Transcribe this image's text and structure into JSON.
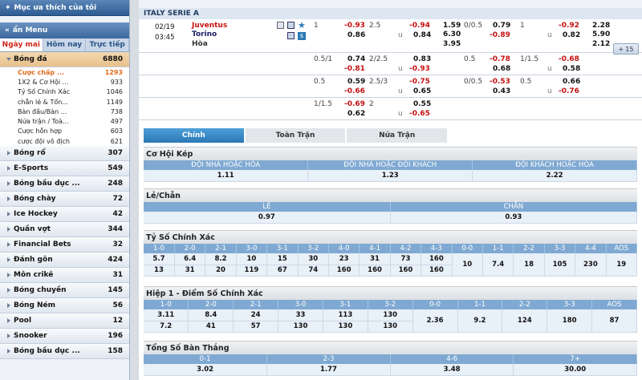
{
  "sidebar": {
    "favorites_title": "Mục ưa thích của tôi",
    "menu_title": "ẩn Menu",
    "tabs": [
      "Ngày mai",
      "Hôm nay",
      "Trực tiếp"
    ],
    "football": {
      "label": "Bóng đá",
      "count": "6880"
    },
    "sub_items": [
      {
        "label": "Cược chấp ...",
        "count": "1293"
      },
      {
        "label": "1X2 & Cơ Hội ...",
        "count": "933"
      },
      {
        "label": "Tỷ Số Chính Xác",
        "count": "1046"
      },
      {
        "label": "chẵn lẻ & Tổn...",
        "count": "1149"
      },
      {
        "label": "Bàn đầu/Bàn ...",
        "count": "738"
      },
      {
        "label": "Nửa trận / Toà...",
        "count": "497"
      },
      {
        "label": "Cược hỗn hợp",
        "count": "603"
      },
      {
        "label": "cược đội vô địch",
        "count": "621"
      }
    ],
    "sports": [
      {
        "label": "Bóng rổ",
        "count": "307"
      },
      {
        "label": "E-Sports",
        "count": "549"
      },
      {
        "label": "Bóng bầu dục ...",
        "count": "248"
      },
      {
        "label": "Bóng chày",
        "count": "72"
      },
      {
        "label": "Ice Hockey",
        "count": "42"
      },
      {
        "label": "Quần vợt",
        "count": "344"
      },
      {
        "label": "Financial Bets",
        "count": "32"
      },
      {
        "label": "Đánh gôn",
        "count": "424"
      },
      {
        "label": "Môn crikê",
        "count": "31"
      },
      {
        "label": "Bóng chuyền",
        "count": "145"
      },
      {
        "label": "Bóng Ném",
        "count": "56"
      },
      {
        "label": "Pool",
        "count": "12"
      },
      {
        "label": "Snooker",
        "count": "196"
      },
      {
        "label": "Bóng bầu dục ...",
        "count": "158"
      }
    ]
  },
  "match": {
    "league": "ITALY SERIE A",
    "date": "02/19",
    "time": "03:45",
    "home": "Juventus",
    "away": "Torino",
    "draw": "Hòa",
    "more": "15",
    "main_row": {
      "hc1": "1",
      "o1": "-0.93",
      "o2": "0.86",
      "ou1": "2.5",
      "u1": "u",
      "o3": "-0.94",
      "o4": "0.84",
      "x1": "1.59",
      "x2": "6.30",
      "x3": "3.95",
      "hc2": "0/0.5",
      "o5": "0.79",
      "o6": "-0.89",
      "ou2": "1",
      "u2": "u",
      "o7": "-0.92",
      "o8": "0.82",
      "x4": "2.28",
      "x5": "5.90",
      "x6": "2.12"
    },
    "alt_rows": [
      {
        "hc1": "0.5/1",
        "a": "0.74",
        "b": "-0.81",
        "ou": "2/2.5",
        "c": "0.83",
        "d": "-0.93",
        "hc2": "0.5",
        "e": "-0.78",
        "f": "0.68",
        "ou2": "1/1.5",
        "g": "-0.68",
        "h": "0.58"
      },
      {
        "hc1": "0.5",
        "a": "0.59",
        "b": "-0.66",
        "ou": "2.5/3",
        "c": "-0.75",
        "d": "0.65",
        "hc2": "0/0.5",
        "e": "-0.53",
        "f": "0.43",
        "ou2": "0.5",
        "g": "0.66",
        "h": "-0.76"
      },
      {
        "hc1": "1/1.5",
        "a": "-0.69",
        "b": "0.62",
        "ou": "2",
        "c": "0.55",
        "d": "-0.65"
      }
    ]
  },
  "tabs": [
    "Chính",
    "Toàn Trận",
    "Nửa Trận"
  ],
  "double_chance": {
    "title": "Cơ Hội Kép",
    "headers": [
      "ĐỘI NHÀ HOẶC HÒA",
      "ĐỘI NHÀ HOẶC ĐỘI KHÁCH",
      "ĐỘI KHÁCH HOẶC HÒA"
    ],
    "values": [
      "1.11",
      "1.23",
      "2.22"
    ]
  },
  "odd_even": {
    "title": "Lẻ/Chẵn",
    "headers": [
      "LẺ",
      "CHẴN"
    ],
    "values": [
      "0.97",
      "0.93"
    ]
  },
  "correct_score": {
    "title": "Tỷ Số Chính Xác",
    "headers": [
      "1-0",
      "2-0",
      "2-1",
      "3-0",
      "3-1",
      "3-2",
      "4-0",
      "4-1",
      "4-2",
      "4-3",
      "0-0",
      "1-1",
      "2-2",
      "3-3",
      "4-4",
      "AOS"
    ],
    "row1": [
      "5.7",
      "6.4",
      "8.2",
      "10",
      "15",
      "30",
      "23",
      "31",
      "73",
      "160"
    ],
    "row2": [
      "13",
      "31",
      "20",
      "119",
      "67",
      "74",
      "160",
      "160",
      "160",
      "160"
    ],
    "shared": [
      "10",
      "7.4",
      "18",
      "105",
      "230",
      "19"
    ]
  },
  "half_score": {
    "title": "Hiệp 1 - Điểm Số Chính Xác",
    "headers": [
      "1-0",
      "2-0",
      "2-1",
      "3-0",
      "3-1",
      "3-2",
      "0-0",
      "1-1",
      "2-2",
      "3-3",
      "AOS"
    ],
    "row1": [
      "3.11",
      "8.4",
      "24",
      "33",
      "113",
      "130"
    ],
    "row2": [
      "7.2",
      "41",
      "57",
      "130",
      "130",
      "130"
    ],
    "shared": [
      "2.36",
      "9.2",
      "124",
      "180",
      "87"
    ]
  },
  "total_goals": {
    "title": "Tổng Số Bàn Thắng",
    "headers": [
      "0-1",
      "2-3",
      "4-6",
      "7+"
    ],
    "values": [
      "3.02",
      "1.77",
      "3.48",
      "30.00"
    ]
  },
  "colors": {
    "accent": "#2a78b5",
    "negative": "#c41010",
    "header_blue": "#7fa9d2"
  }
}
